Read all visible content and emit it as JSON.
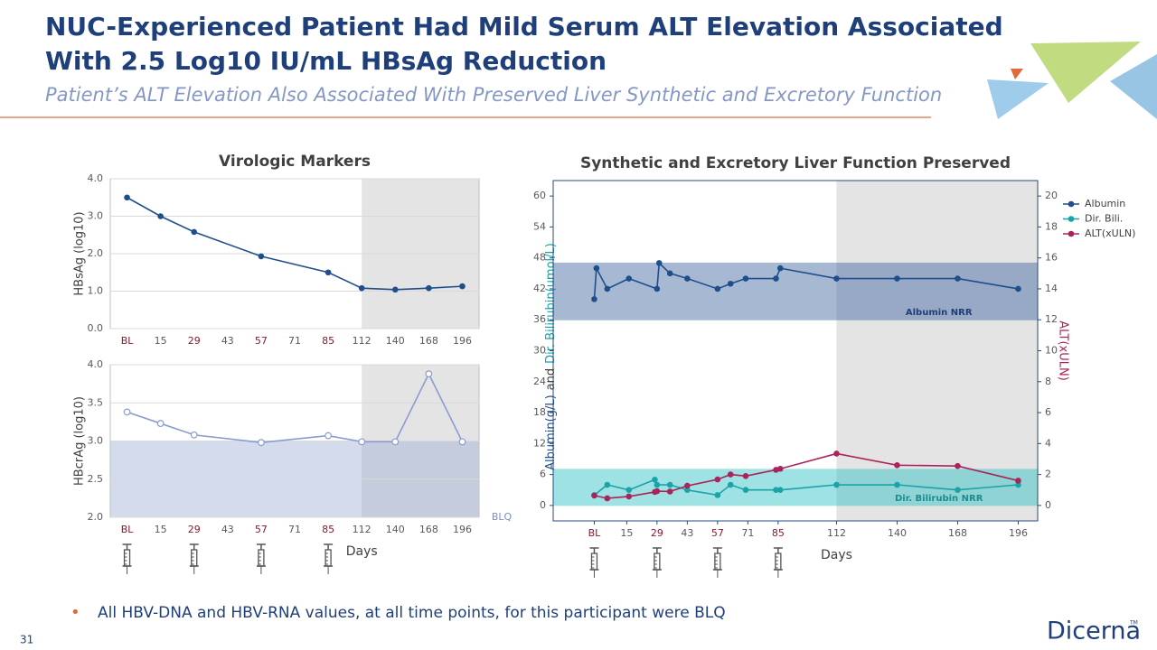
{
  "title": [
    "NUC-Experienced Patient Had Mild Serum ALT Elevation Associated",
    "With 2.5 Log10 IU/mL HBsAg Reduction"
  ],
  "subtitle": "Patient’s ALT Elevation Also Associated With Preserved Liver Synthetic and Excretory Function",
  "bullet": "All HBV-DNA and HBV-RNA values, at all time points, for this participant were BLQ",
  "page_number": "31",
  "logo": "Dicerna",
  "logo_mark": "TM",
  "chart_data": [
    {
      "type": "line",
      "title": "Virologic Markers",
      "y_label": "HBsAg (log10)",
      "categories": [
        "BL",
        "15",
        "29",
        "43",
        "57",
        "71",
        "85",
        "112",
        "140",
        "168",
        "196"
      ],
      "highlighted": [
        "BL",
        "29",
        "57",
        "85"
      ],
      "highlight_color": "#8b1a2f",
      "ylim": [
        0,
        4
      ],
      "yticks": [
        {
          "value": 0,
          "label": "0.0"
        },
        {
          "value": 1,
          "label": "1.0"
        },
        {
          "value": 2,
          "label": "2.0"
        },
        {
          "value": 3,
          "label": "3.0"
        },
        {
          "value": 4,
          "label": "4.0"
        }
      ],
      "grid": true,
      "shaded_from": "112",
      "shade_color": "#e4e4e4",
      "series": [
        {
          "color": "#1f4e8c",
          "x": [
            "BL",
            "15",
            "29",
            "57",
            "85",
            "112",
            "140",
            "168",
            "196"
          ],
          "values": [
            3.5,
            3.0,
            2.58,
            1.93,
            1.5,
            1.08,
            1.04,
            1.08,
            1.13
          ]
        }
      ]
    },
    {
      "type": "line",
      "y_label": "HBcrAg (log10)",
      "x_label": "Days",
      "categories": [
        "BL",
        "15",
        "29",
        "43",
        "57",
        "71",
        "85",
        "112",
        "140",
        "168",
        "196"
      ],
      "highlighted": [
        "BL",
        "29",
        "57",
        "85"
      ],
      "highlight_color": "#8b1a2f",
      "ylim": [
        2,
        4
      ],
      "yticks": [
        {
          "value": 2,
          "label": "2.0"
        },
        2.5,
        {
          "value": 3,
          "label": "3.0"
        },
        3.5,
        {
          "value": 4,
          "label": "4.0"
        }
      ],
      "grid": true,
      "shaded_from": "112",
      "shade_color": "#e4e4e4",
      "bands": [
        {
          "from": 2,
          "to": 3,
          "label": "BLQ",
          "color": "#9fb0d6"
        }
      ],
      "series": [
        {
          "color": "#8a9bd0",
          "x": [
            "BL",
            "15",
            "29",
            "57",
            "85",
            "112",
            "140",
            "168",
            "196"
          ],
          "values": [
            3.38,
            3.23,
            3.08,
            2.98,
            3.07,
            2.99,
            2.99,
            3.88,
            2.99
          ]
        }
      ]
    },
    {
      "type": "line",
      "title": "Synthetic and Excretory Liver Function Preserved",
      "y_label": [
        "Albumin(g/L)",
        "and",
        "Dir. Bilirubin(umol/L)"
      ],
      "y2_label": "ALT(xULN)",
      "x_label": "Days",
      "xlim": [
        -19,
        205
      ],
      "xticks": [
        {
          "value": 0,
          "label": "BL"
        },
        15,
        29,
        43,
        57,
        71,
        85,
        112,
        140,
        168,
        196
      ],
      "highlighted": [
        "BL",
        "29",
        "57",
        "85"
      ],
      "highlight_color": "#8b1a2f",
      "ylim": [
        -3,
        63
      ],
      "yticks": [
        0,
        6,
        12,
        18,
        24,
        30,
        36,
        42,
        48,
        54,
        60
      ],
      "y2lim": [
        -1,
        21
      ],
      "y2ticks": [
        0,
        2,
        4,
        6,
        8,
        10,
        12,
        14,
        16,
        18,
        20
      ],
      "grid": false,
      "shaded_from": 112,
      "shade_color": "#e4e4e4",
      "legend": "upper right",
      "bands": [
        {
          "from": 36,
          "to": 47,
          "label": "Albumin NRR",
          "color": "#3e63a0"
        },
        {
          "from": 0,
          "to": 7,
          "label": "Dir. Bilirubin NRR",
          "color": "#2bbfc4"
        }
      ],
      "series": [
        {
          "name": "Albumin",
          "color": "#1f4e8c",
          "x": [
            0,
            1,
            6,
            16,
            29,
            30,
            35,
            43,
            57,
            63,
            70,
            84,
            86,
            112,
            140,
            168,
            196
          ],
          "values": [
            40,
            46,
            42,
            44,
            42,
            47,
            45,
            44,
            42,
            43,
            44,
            44,
            46,
            44,
            44,
            44,
            42
          ]
        },
        {
          "name": "Dir. Bili.",
          "color": "#1aa3a8",
          "x": [
            0,
            6,
            16,
            28,
            29,
            35,
            43,
            57,
            63,
            70,
            84,
            86,
            112,
            140,
            168,
            196
          ],
          "values": [
            2,
            4,
            3,
            5,
            4,
            4,
            3,
            2,
            4,
            3,
            3,
            3,
            4,
            4,
            3,
            4
          ]
        },
        {
          "name": "ALT(xULN)",
          "color": "#a8245a",
          "axis": "y2",
          "x": [
            0,
            6,
            16,
            28,
            29,
            35,
            43,
            57,
            63,
            70,
            84,
            86,
            112,
            140,
            168,
            196
          ],
          "values": [
            0.64,
            0.46,
            0.58,
            0.87,
            0.92,
            0.9,
            1.27,
            1.68,
            2.0,
            1.9,
            2.3,
            2.37,
            3.35,
            2.6,
            2.55,
            1.6
          ]
        }
      ]
    }
  ]
}
